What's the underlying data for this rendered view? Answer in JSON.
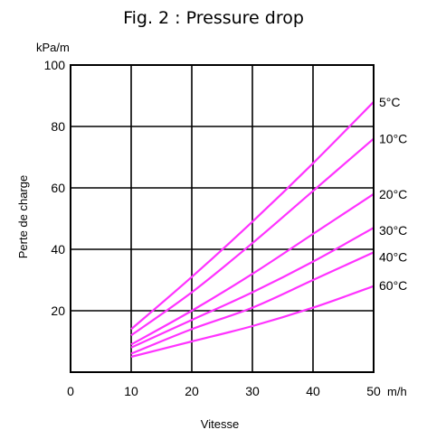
{
  "chart_data": {
    "type": "line",
    "title": "Fig. 2 : Pressure drop",
    "xlabel": "Vitesse",
    "ylabel": "Perte de charge",
    "x_unit": "m/h",
    "y_unit": "kPa/m",
    "xlim": [
      0,
      50
    ],
    "ylim": [
      0,
      100
    ],
    "x_ticks": [
      0,
      10,
      20,
      30,
      40,
      50
    ],
    "y_ticks": [
      20,
      40,
      60,
      80,
      100
    ],
    "grid": true,
    "series": [
      {
        "name": "5°C",
        "color": "#ff33ff",
        "x": [
          10,
          20,
          30,
          40,
          50
        ],
        "y": [
          14,
          31,
          49,
          68,
          88
        ]
      },
      {
        "name": "10°C",
        "color": "#ff33ff",
        "x": [
          10,
          20,
          30,
          40,
          50
        ],
        "y": [
          12,
          26,
          42,
          59,
          76
        ]
      },
      {
        "name": "20°C",
        "color": "#ff33ff",
        "x": [
          10,
          20,
          30,
          40,
          50
        ],
        "y": [
          9,
          20,
          32,
          45,
          58
        ]
      },
      {
        "name": "30°C",
        "color": "#ff33ff",
        "x": [
          10,
          20,
          30,
          40,
          50
        ],
        "y": [
          8,
          17,
          26,
          36,
          47
        ]
      },
      {
        "name": "40°C",
        "color": "#ff33ff",
        "x": [
          10,
          20,
          30,
          40,
          50
        ],
        "y": [
          6,
          14,
          21,
          30,
          39
        ]
      },
      {
        "name": "60°C",
        "color": "#ff33ff",
        "x": [
          10,
          20,
          30,
          40,
          50
        ],
        "y": [
          5,
          10,
          15,
          21,
          28
        ]
      }
    ]
  }
}
